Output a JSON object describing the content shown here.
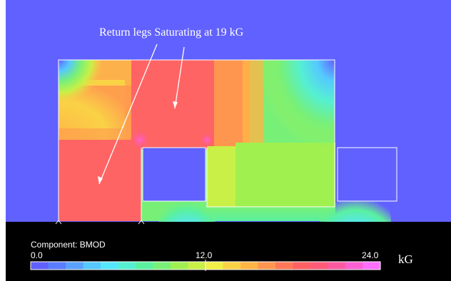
{
  "annotation": {
    "text": "Return legs Saturating at 19 kG"
  },
  "colorbar": {
    "component_label": "Component: BMOD",
    "min_label": "0.0",
    "mid_label": "12.0",
    "max_label": "24.0",
    "unit": "kG",
    "range": [
      0,
      24
    ],
    "colors": [
      "#6060ff",
      "#5a7cff",
      "#5aa0ff",
      "#55c8ff",
      "#55e6ff",
      "#55f0d2",
      "#5af0a0",
      "#78f078",
      "#a0f050",
      "#c8f046",
      "#f0f046",
      "#fad246",
      "#ffb446",
      "#ff9650",
      "#ff7858",
      "#ff6064",
      "#ff5a78",
      "#ff5aa0",
      "#ff60d2",
      "#ff6eff"
    ]
  },
  "colors": {
    "air": "#6161ff",
    "background": "#000000",
    "saturated": "#ff6464",
    "mid_field": "#78f078",
    "outline": "#ffffff"
  }
}
